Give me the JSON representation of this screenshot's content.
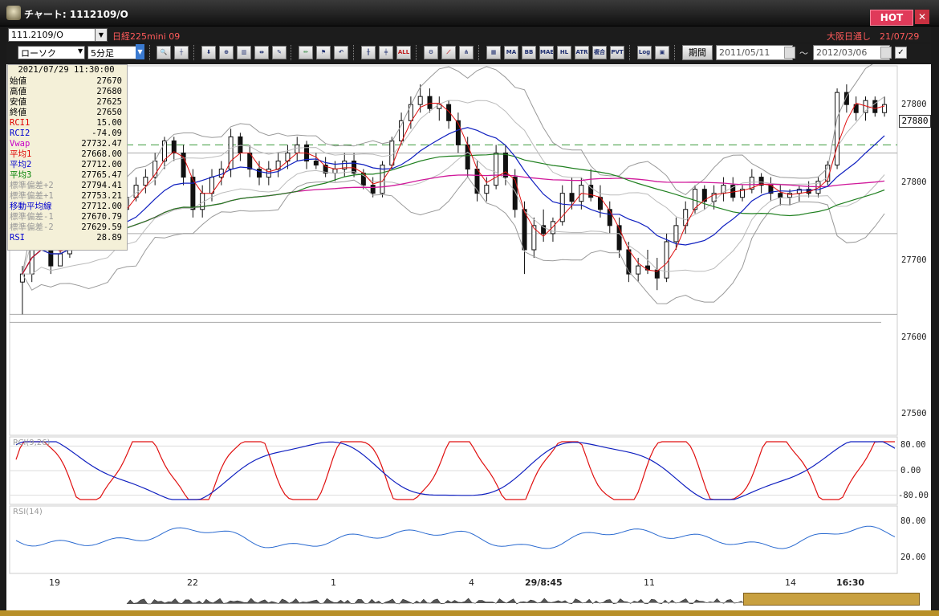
{
  "window": {
    "title": "チャート: 1112109/O",
    "hot_label": "HOT",
    "close_label": "✕"
  },
  "header": {
    "symbol": "111.2109/O",
    "instrument": "日経225mini 09",
    "session": "大阪日通し　21/07/29"
  },
  "toolbar": {
    "chart_type": "ローソク",
    "interval": "5分足",
    "buttons": [
      "zoom-icon",
      "cursor-icon",
      "arrow-down-icon",
      "zoom-fit-icon",
      "bar-move-icon",
      "tick-icon",
      "redraw-icon",
      "pencil-icon",
      "flag-icon",
      "undo-icon",
      "candle-a-icon",
      "candle-b-icon",
      "ALL",
      "settings-icon",
      "trend-icon",
      "magnet-icon",
      "chart-1-icon",
      "MA",
      "BB",
      "MAE",
      "HL",
      "ATR",
      "複合",
      "PVT",
      "Log",
      "panel-icon"
    ],
    "btn_labels": {
      "ma": "MA",
      "bb": "BB",
      "mae": "MAE",
      "hl": "HL",
      "atr": "ATR",
      "multi": "複合",
      "pvt": "PVT",
      "log": "Log",
      "all": "ALL"
    },
    "period_label": "期間",
    "date_from": "2011/05/11",
    "date_to": "2012/03/06",
    "tilde": "〜"
  },
  "info_panel": {
    "timestamp": "2021/07/29  11:30:00",
    "rows": [
      {
        "key": "始値",
        "value": "27670",
        "color": "#000000"
      },
      {
        "key": "高値",
        "value": "27680",
        "color": "#000000"
      },
      {
        "key": "安値",
        "value": "27625",
        "color": "#000000"
      },
      {
        "key": "終値",
        "value": "27650",
        "color": "#000000"
      },
      {
        "key": "RCI1",
        "value": "15.00",
        "color": "#e00000"
      },
      {
        "key": "RCI2",
        "value": "-74.09",
        "color": "#0000d0"
      },
      {
        "key": "Vwap",
        "value": "27732.47",
        "color": "#c800c8"
      },
      {
        "key": "平均1",
        "value": "27668.00",
        "color": "#e00000"
      },
      {
        "key": "平均2",
        "value": "27712.00",
        "color": "#0000d0"
      },
      {
        "key": "平均3",
        "value": "27765.47",
        "color": "#008000"
      },
      {
        "key": "標準偏差+2",
        "value": "27794.41",
        "color": "#999999"
      },
      {
        "key": "標準偏差+1",
        "value": "27753.21",
        "color": "#999999"
      },
      {
        "key": "移動平均線",
        "value": "27712.00",
        "color": "#0000d0"
      },
      {
        "key": "標準偏差-1",
        "value": "27670.79",
        "color": "#999999"
      },
      {
        "key": "標準偏差-2",
        "value": "27629.59",
        "color": "#999999"
      },
      {
        "key": "RSI",
        "value": "28.89",
        "color": "#0000d0"
      }
    ]
  },
  "price_axis": {
    "labels": [
      "27800",
      "27800",
      "27700",
      "27600",
      "27500"
    ],
    "current": "27880"
  },
  "rci_axis": {
    "title": "RCI(9,26)",
    "labels": [
      "80.00",
      "0.00",
      "-80.00"
    ]
  },
  "rsi_axis": {
    "title": "RSI(14)",
    "labels": [
      "80.00",
      "20.00"
    ]
  },
  "time_axis": {
    "labels": [
      "19",
      "22",
      "1",
      "4",
      "29/8:45",
      "11",
      "14",
      "16:30"
    ]
  },
  "chart_data": {
    "type": "candlestick",
    "y_range": [
      27460,
      27900
    ],
    "reference_line": 27810,
    "candles": [
      [
        27640,
        27660,
        27600,
        27650
      ],
      [
        27650,
        27700,
        27640,
        27690
      ],
      [
        27690,
        27720,
        27680,
        27700
      ],
      [
        27700,
        27710,
        27650,
        27660
      ],
      [
        27660,
        27680,
        27660,
        27675
      ],
      [
        27675,
        27720,
        27670,
        27710
      ],
      [
        27710,
        27740,
        27700,
        27730
      ],
      [
        27730,
        27760,
        27720,
        27750
      ],
      [
        27750,
        27760,
        27720,
        27730
      ],
      [
        27730,
        27740,
        27700,
        27715
      ],
      [
        27715,
        27740,
        27710,
        27730
      ],
      [
        27730,
        27760,
        27720,
        27745
      ],
      [
        27745,
        27770,
        27740,
        27760
      ],
      [
        27760,
        27780,
        27750,
        27770
      ],
      [
        27770,
        27800,
        27760,
        27790
      ],
      [
        27790,
        27820,
        27780,
        27815
      ],
      [
        27815,
        27820,
        27790,
        27800
      ],
      [
        27800,
        27810,
        27760,
        27770
      ],
      [
        27770,
        27780,
        27720,
        27730
      ],
      [
        27730,
        27760,
        27720,
        27750
      ],
      [
        27750,
        27780,
        27740,
        27770
      ],
      [
        27770,
        27790,
        27760,
        27780
      ],
      [
        27780,
        27830,
        27770,
        27820
      ],
      [
        27820,
        27825,
        27790,
        27800
      ],
      [
        27800,
        27810,
        27770,
        27780
      ],
      [
        27780,
        27790,
        27760,
        27770
      ],
      [
        27770,
        27790,
        27760,
        27780
      ],
      [
        27780,
        27800,
        27770,
        27790
      ],
      [
        27790,
        27810,
        27780,
        27800
      ],
      [
        27800,
        27820,
        27790,
        27810
      ],
      [
        27810,
        27815,
        27780,
        27790
      ],
      [
        27790,
        27800,
        27780,
        27785
      ],
      [
        27785,
        27795,
        27770,
        27775
      ],
      [
        27775,
        27790,
        27765,
        27780
      ],
      [
        27780,
        27800,
        27770,
        27790
      ],
      [
        27790,
        27800,
        27770,
        27775
      ],
      [
        27775,
        27780,
        27755,
        27760
      ],
      [
        27760,
        27770,
        27745,
        27750
      ],
      [
        27750,
        27790,
        27745,
        27785
      ],
      [
        27785,
        27820,
        27780,
        27815
      ],
      [
        27815,
        27850,
        27810,
        27840
      ],
      [
        27840,
        27870,
        27830,
        27860
      ],
      [
        27860,
        27885,
        27850,
        27870
      ],
      [
        27870,
        27880,
        27850,
        27855
      ],
      [
        27855,
        27870,
        27840,
        27860
      ],
      [
        27860,
        27865,
        27830,
        27840
      ],
      [
        27840,
        27850,
        27800,
        27810
      ],
      [
        27810,
        27820,
        27770,
        27780
      ],
      [
        27780,
        27790,
        27740,
        27750
      ],
      [
        27750,
        27770,
        27740,
        27760
      ],
      [
        27760,
        27810,
        27755,
        27800
      ],
      [
        27800,
        27810,
        27760,
        27770
      ],
      [
        27770,
        27780,
        27720,
        27730
      ],
      [
        27730,
        27740,
        27650,
        27680
      ],
      [
        27680,
        27720,
        27670,
        27710
      ],
      [
        27710,
        27730,
        27690,
        27700
      ],
      [
        27700,
        27720,
        27690,
        27715
      ],
      [
        27715,
        27760,
        27710,
        27750
      ],
      [
        27750,
        27770,
        27730,
        27740
      ],
      [
        27740,
        27770,
        27730,
        27760
      ],
      [
        27760,
        27780,
        27740,
        27745
      ],
      [
        27745,
        27760,
        27720,
        27730
      ],
      [
        27730,
        27740,
        27700,
        27710
      ],
      [
        27710,
        27720,
        27670,
        27680
      ],
      [
        27680,
        27690,
        27640,
        27650
      ],
      [
        27650,
        27670,
        27640,
        27660
      ],
      [
        27660,
        27680,
        27650,
        27655
      ],
      [
        27655,
        27670,
        27630,
        27645
      ],
      [
        27645,
        27700,
        27640,
        27690
      ],
      [
        27690,
        27720,
        27680,
        27710
      ],
      [
        27710,
        27740,
        27700,
        27730
      ],
      [
        27730,
        27760,
        27725,
        27755
      ],
      [
        27755,
        27760,
        27730,
        27740
      ],
      [
        27740,
        27760,
        27730,
        27750
      ],
      [
        27750,
        27770,
        27740,
        27760
      ],
      [
        27760,
        27770,
        27740,
        27745
      ],
      [
        27745,
        27760,
        27740,
        27755
      ],
      [
        27755,
        27780,
        27750,
        27770
      ],
      [
        27770,
        27775,
        27750,
        27760
      ],
      [
        27760,
        27770,
        27740,
        27750
      ],
      [
        27750,
        27760,
        27735,
        27745
      ],
      [
        27745,
        27755,
        27735,
        27750
      ],
      [
        27750,
        27760,
        27740,
        27755
      ],
      [
        27755,
        27765,
        27745,
        27750
      ],
      [
        27750,
        27770,
        27745,
        27765
      ],
      [
        27765,
        27790,
        27760,
        27785
      ],
      [
        27785,
        27880,
        27780,
        27875
      ],
      [
        27875,
        27885,
        27850,
        27860
      ],
      [
        27860,
        27870,
        27840,
        27850
      ],
      [
        27850,
        27870,
        27840,
        27865
      ],
      [
        27865,
        27870,
        27845,
        27850
      ],
      [
        27850,
        27870,
        27845,
        27860
      ]
    ]
  }
}
